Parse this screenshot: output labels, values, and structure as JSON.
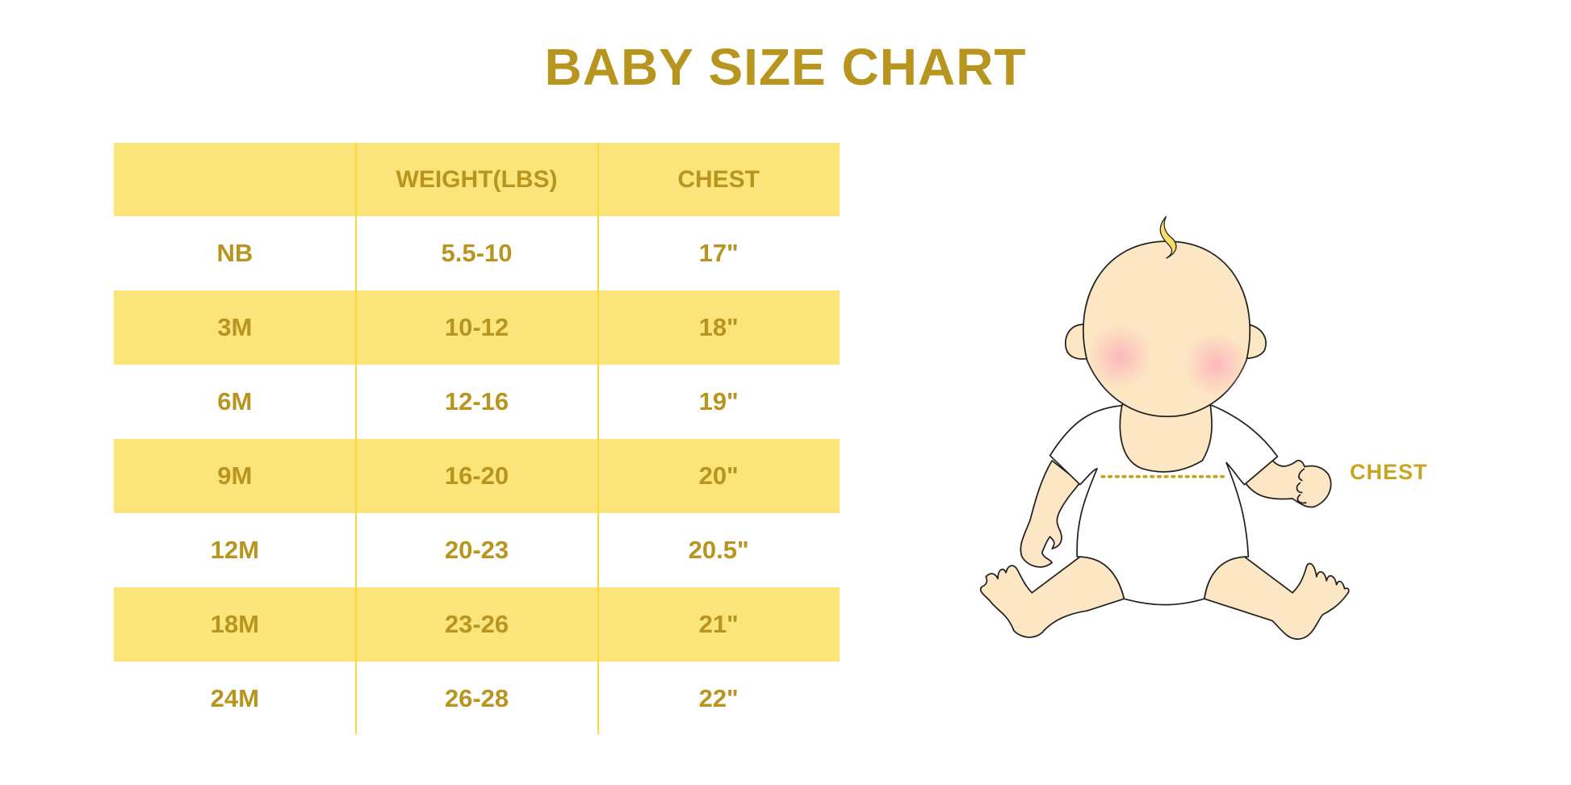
{
  "title": "BABY SIZE CHART",
  "table": {
    "headers": [
      "",
      "WEIGHT(LBS)",
      "CHEST"
    ],
    "rows": [
      [
        "NB",
        "5.5-10",
        "17\""
      ],
      [
        "3M",
        "10-12",
        "18\""
      ],
      [
        "6M",
        "12-16",
        "19\""
      ],
      [
        "9M",
        "16-20",
        "20\""
      ],
      [
        "12M",
        "20-23",
        "20.5\""
      ],
      [
        "18M",
        "23-26",
        "21\""
      ],
      [
        "24M",
        "26-28",
        "22\""
      ]
    ]
  },
  "illustration": {
    "label": "CHEST"
  },
  "colors": {
    "accent_text": "#B7951F",
    "row_fill": "#FBE57B",
    "divider": "#F9D838",
    "skin": "#FDE6C3",
    "cheek": "#FBB6BC"
  }
}
